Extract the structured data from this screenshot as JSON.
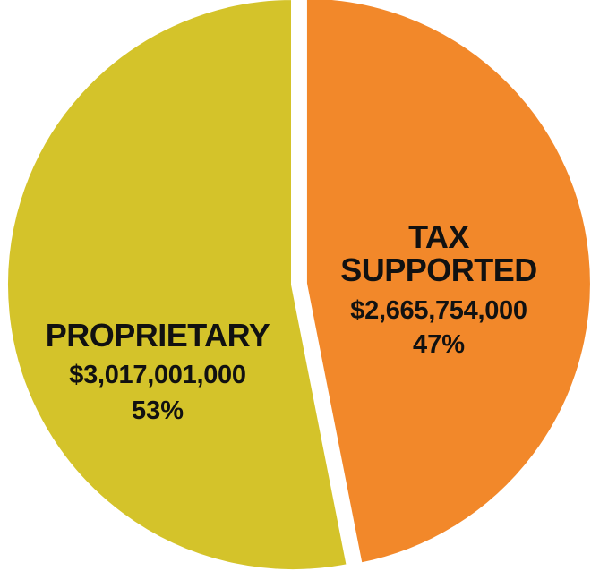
{
  "chart_data": {
    "type": "pie",
    "slices": [
      {
        "name_lines": [
          "TAX",
          "SUPPORTED"
        ],
        "value": 2665754000,
        "value_label": "$2,665,754,000",
        "percent": 47,
        "percent_label": "47%",
        "color": "#F2882A"
      },
      {
        "name_lines": [
          "PROPRIETARY"
        ],
        "value": 3017001000,
        "value_label": "$3,017,001,000",
        "percent": 53,
        "percent_label": "53%",
        "color": "#D4C32A"
      }
    ],
    "exploded_slice": "TAX SUPPORTED",
    "legend": "none"
  }
}
